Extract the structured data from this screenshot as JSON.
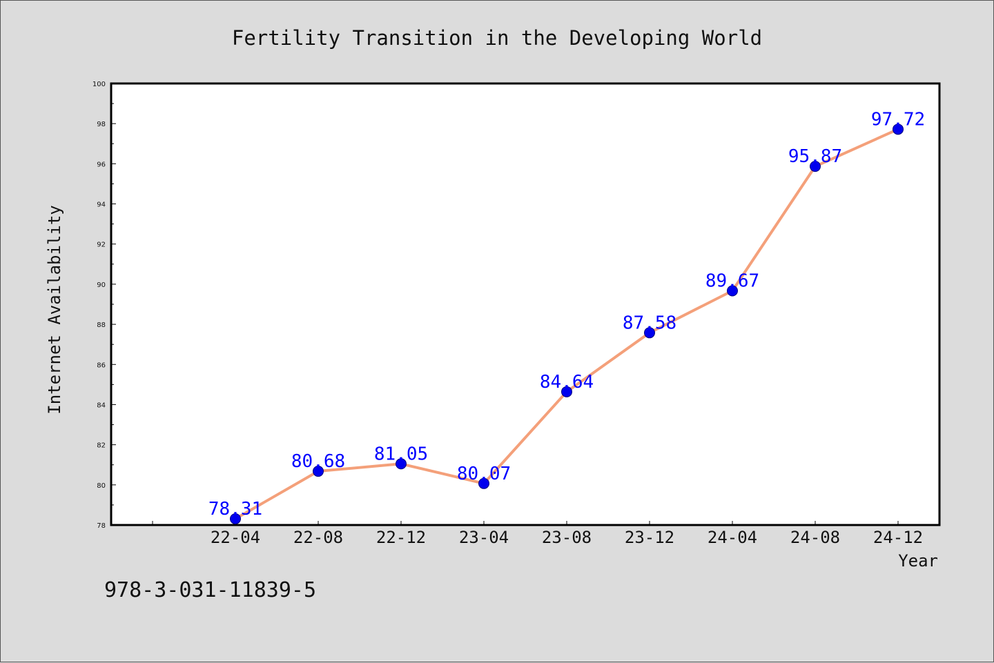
{
  "chart_data": {
    "type": "line",
    "title": "Fertility Transition in the Developing World",
    "xlabel": "Year",
    "ylabel": "Internet Availability",
    "categories": [
      "22-04",
      "22-08",
      "22-12",
      "23-04",
      "23-08",
      "23-12",
      "24-04",
      "24-08",
      "24-12"
    ],
    "values": [
      78.31,
      80.68,
      81.05,
      80.07,
      84.64,
      87.58,
      89.67,
      95.87,
      97.72
    ],
    "data_labels": [
      "78.31",
      "80.68",
      "81.05",
      "80.07",
      "84.64",
      "87.58",
      "89.67",
      "95.87",
      "97.72"
    ],
    "ylim": [
      78,
      100
    ],
    "yticks": [
      "78",
      "80",
      "82",
      "84",
      "86",
      "88",
      "90",
      "92",
      "94",
      "96",
      "98",
      "100"
    ],
    "grid": false,
    "legend": "none"
  },
  "footnote": "978-3-031-11839-5",
  "colors": {
    "background": "#dcdcdc",
    "plot_background": "#ffffff",
    "line": "#f4a07a",
    "marker": "#0000ee",
    "data_label": "#0000ff"
  }
}
